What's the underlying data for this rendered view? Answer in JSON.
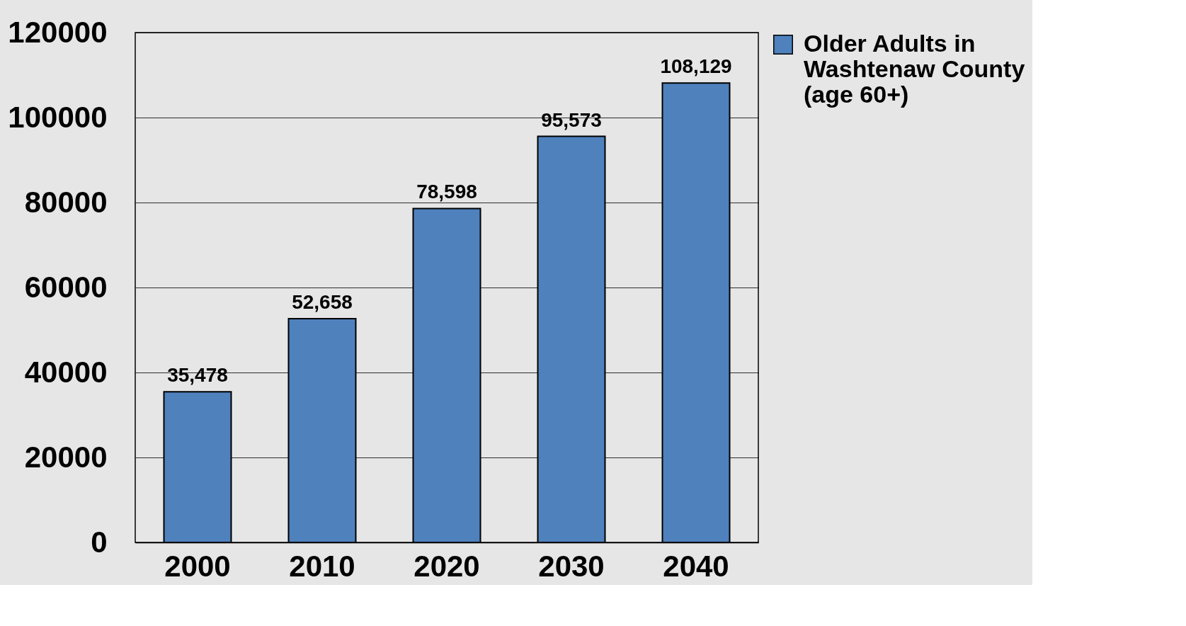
{
  "chart_data": {
    "type": "bar",
    "categories": [
      "2000",
      "2010",
      "2020",
      "2030",
      "2040"
    ],
    "series": [
      {
        "name": "Older Adults in Washtenaw County (age 60+)",
        "color": "#4f81bd",
        "values": [
          35478,
          52658,
          78598,
          95573,
          108129
        ],
        "value_labels": [
          "35,478",
          "52,658",
          "78,598",
          "95,573",
          "108,129"
        ]
      }
    ],
    "ylim": [
      0,
      120000
    ],
    "yticks": [
      0,
      20000,
      40000,
      60000,
      80000,
      100000,
      120000
    ],
    "grid": "y",
    "legend": "right"
  }
}
